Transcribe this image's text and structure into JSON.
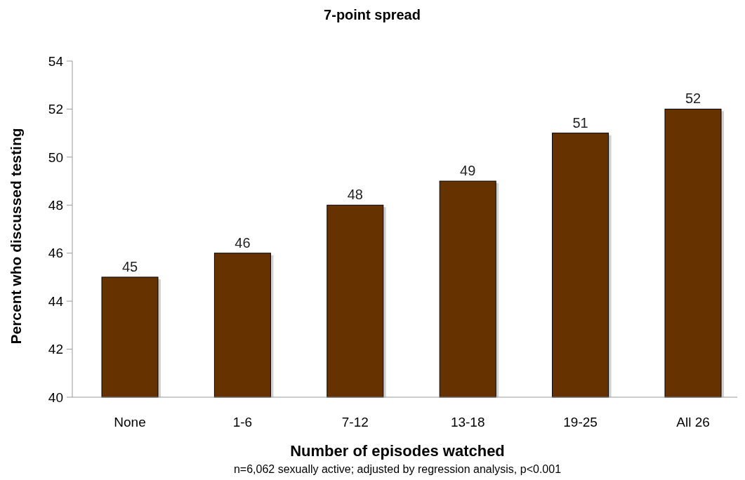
{
  "chart_data": {
    "type": "bar",
    "title": "7-point spread",
    "xlabel": "Number of episodes watched",
    "ylabel": "Percent who discussed testing",
    "categories": [
      "None",
      "1-6",
      "7-12",
      "13-18",
      "19-25",
      "All 26"
    ],
    "values": [
      45,
      46,
      48,
      49,
      51,
      52
    ],
    "color": "#663300",
    "ylim": [
      40,
      54
    ],
    "yticks": [
      40,
      42,
      44,
      46,
      48,
      50,
      52,
      54
    ],
    "grid": false,
    "data_labels": true,
    "annotations": [
      "n=6,062 sexually active; adjusted by regression analysis, p<0.001"
    ]
  }
}
